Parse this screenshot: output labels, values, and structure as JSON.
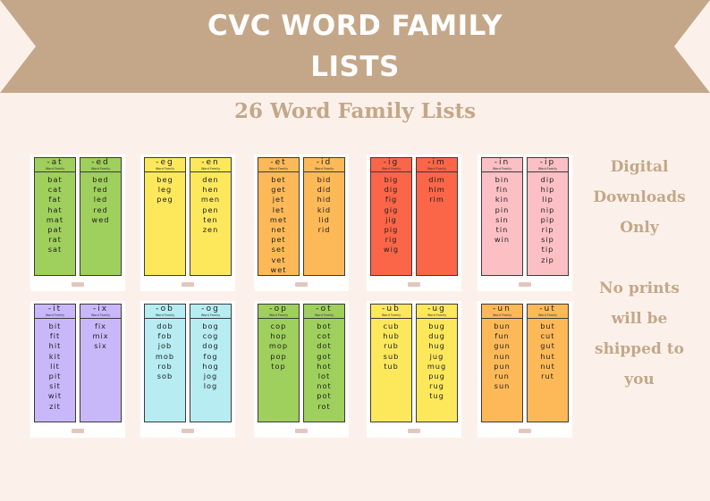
{
  "colors": {
    "background": "#fcf1ea",
    "banner": "#c4a789",
    "title_text": "#ffffff",
    "accent_text": "#c4a789"
  },
  "title": {
    "line1": "CVC WORD FAMILY",
    "line2": "LISTS"
  },
  "subtitle": "26 Word Family Lists",
  "card_subtitle": "Word Family",
  "rows": [
    [
      [
        {
          "title": "-at",
          "color": "#9fcf5c",
          "words": [
            "bat",
            "cat",
            "fat",
            "hat",
            "mat",
            "pat",
            "rat",
            "sat"
          ]
        },
        {
          "title": "-ed",
          "color": "#9fcf5c",
          "words": [
            "bed",
            "fed",
            "led",
            "red",
            "wed"
          ]
        }
      ],
      [
        {
          "title": "-eg",
          "color": "#fde85c",
          "words": [
            "beg",
            "leg",
            "peg"
          ]
        },
        {
          "title": "-en",
          "color": "#fde85c",
          "words": [
            "den",
            "hen",
            "men",
            "pen",
            "ten",
            "zen"
          ]
        }
      ],
      [
        {
          "title": "-et",
          "color": "#fdb958",
          "words": [
            "bet",
            "get",
            "jet",
            "let",
            "met",
            "net",
            "pet",
            "set",
            "vet",
            "wet"
          ]
        },
        {
          "title": "-id",
          "color": "#fdb958",
          "words": [
            "bid",
            "did",
            "hid",
            "kid",
            "lid",
            "rid"
          ]
        }
      ],
      [
        {
          "title": "-ig",
          "color": "#fb6548",
          "words": [
            "big",
            "dig",
            "fig",
            "gig",
            "jig",
            "pig",
            "rig",
            "wig"
          ]
        },
        {
          "title": "-im",
          "color": "#fb6548",
          "words": [
            "dim",
            "him",
            "rim"
          ]
        }
      ],
      [
        {
          "title": "-in",
          "color": "#fcc0c4",
          "words": [
            "bin",
            "fin",
            "kin",
            "pin",
            "sin",
            "tin",
            "win"
          ]
        },
        {
          "title": "-ip",
          "color": "#fcc0c4",
          "words": [
            "dip",
            "hip",
            "lip",
            "nip",
            "pip",
            "rip",
            "sip",
            "tip",
            "zip"
          ]
        }
      ]
    ],
    [
      [
        {
          "title": "-it",
          "color": "#c9b8f9",
          "words": [
            "bit",
            "fit",
            "hit",
            "kit",
            "lit",
            "pit",
            "sit",
            "wit",
            "zit"
          ]
        },
        {
          "title": "-ix",
          "color": "#c9b8f9",
          "words": [
            "fix",
            "mix",
            "six"
          ]
        }
      ],
      [
        {
          "title": "-ob",
          "color": "#b6ecf2",
          "words": [
            "dob",
            "fob",
            "job",
            "mob",
            "rob",
            "sob"
          ]
        },
        {
          "title": "-og",
          "color": "#b6ecf2",
          "words": [
            "bog",
            "cog",
            "dog",
            "fog",
            "hog",
            "jog",
            "log"
          ]
        }
      ],
      [
        {
          "title": "-op",
          "color": "#9fcf5c",
          "words": [
            "cop",
            "hop",
            "mop",
            "pop",
            "top"
          ]
        },
        {
          "title": "-ot",
          "color": "#9fcf5c",
          "words": [
            "bot",
            "cot",
            "dot",
            "got",
            "hot",
            "lot",
            "not",
            "pot",
            "rot"
          ]
        }
      ],
      [
        {
          "title": "-ub",
          "color": "#fde85c",
          "words": [
            "cub",
            "hub",
            "rub",
            "sub",
            "tub"
          ]
        },
        {
          "title": "-ug",
          "color": "#fde85c",
          "words": [
            "bug",
            "dug",
            "hug",
            "jug",
            "mug",
            "pug",
            "rug",
            "tug"
          ]
        }
      ],
      [
        {
          "title": "-un",
          "color": "#fdb958",
          "words": [
            "bun",
            "fun",
            "gun",
            "nun",
            "pun",
            "run",
            "sun"
          ]
        },
        {
          "title": "-ut",
          "color": "#fdb958",
          "words": [
            "but",
            "cut",
            "gut",
            "hut",
            "nut",
            "rut"
          ]
        }
      ]
    ]
  ],
  "side_notes": {
    "digital": [
      "Digital",
      "Downloads",
      "Only"
    ],
    "no_prints": [
      "No prints",
      "will be",
      "shipped to",
      "you"
    ]
  }
}
